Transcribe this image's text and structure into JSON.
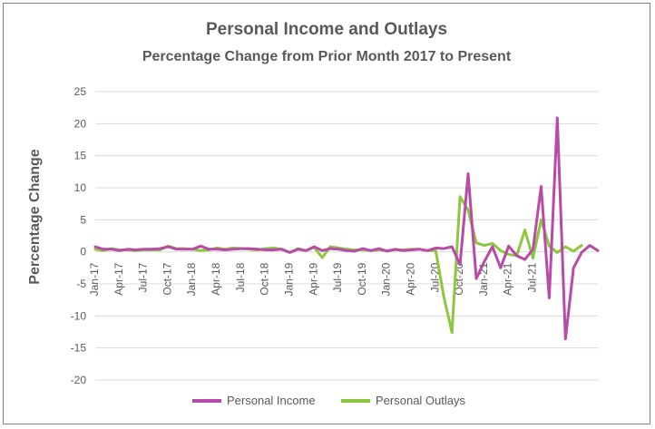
{
  "chart_data": {
    "type": "line",
    "title": "Personal Income and Outlays",
    "subtitle": "Percentage Change from Prior Month 2017 to Present",
    "ylabel": "Percentage Change",
    "xlabel": "",
    "ylim": [
      -20,
      25
    ],
    "yticks": [
      25,
      20,
      15,
      10,
      5,
      0,
      -5,
      -10,
      -15,
      -20
    ],
    "grid": "horizontal",
    "legend_position": "bottom",
    "x_tick_labels": [
      "Jan-17",
      "Apr-17",
      "Jul-17",
      "Oct-17",
      "Jan-18",
      "Apr-18",
      "Jul-18",
      "Oct-18",
      "Jan-19",
      "Apr-19",
      "Jul-19",
      "Oct-19",
      "Jan-20",
      "Apr-20",
      "Jul-20",
      "Oct-20",
      "Jan-21",
      "Apr-21",
      "Jul-21"
    ],
    "x_tick_every": 3,
    "series": [
      {
        "name": "Personal Income",
        "color": "#b84aa8",
        "values": [
          0.8,
          0.4,
          0.4,
          0.2,
          0.4,
          0.3,
          0.4,
          0.4,
          0.5,
          0.8,
          0.4,
          0.4,
          0.4,
          0.9,
          0.4,
          0.4,
          0.3,
          0.4,
          0.5,
          0.5,
          0.4,
          0.3,
          0.3,
          0.4,
          -0.1,
          0.4,
          0.2,
          0.8,
          0.2,
          0.5,
          0.4,
          0.2,
          0.1,
          0.5,
          0.2,
          0.5,
          0.1,
          0.4,
          0.2,
          0.3,
          0.4,
          0.2,
          0.6,
          0.5,
          0.8,
          -2.0,
          12.2,
          -4.2,
          -1.5,
          0.8,
          -2.5,
          0.9,
          -0.6,
          -1.2,
          0.4,
          10.2,
          -7.2,
          20.9,
          -13.6,
          -2.5,
          -0.1,
          1.0,
          0.2
        ]
      },
      {
        "name": "Personal Outlays",
        "color": "#8dc63f",
        "values": [
          0.4,
          0.2,
          0.5,
          0.3,
          0.3,
          0.2,
          0.3,
          0.3,
          0.3,
          0.9,
          0.5,
          0.5,
          0.4,
          0.2,
          0.3,
          0.6,
          0.4,
          0.6,
          0.5,
          0.4,
          0.3,
          0.5,
          0.6,
          0.4,
          -0.1,
          0.5,
          0.2,
          0.7,
          -0.9,
          0.8,
          0.6,
          0.4,
          0.3,
          0.3,
          0.2,
          0.3,
          0.2,
          0.3,
          0.3,
          0.4,
          0.4,
          0.2,
          0.2,
          -7.0,
          -12.6,
          8.6,
          6.5,
          1.4,
          1.0,
          1.3,
          0.2,
          -0.4,
          -0.6,
          3.4,
          -1.0,
          5.0,
          0.9,
          -0.1,
          0.8,
          0.1,
          1.0
        ]
      }
    ]
  }
}
